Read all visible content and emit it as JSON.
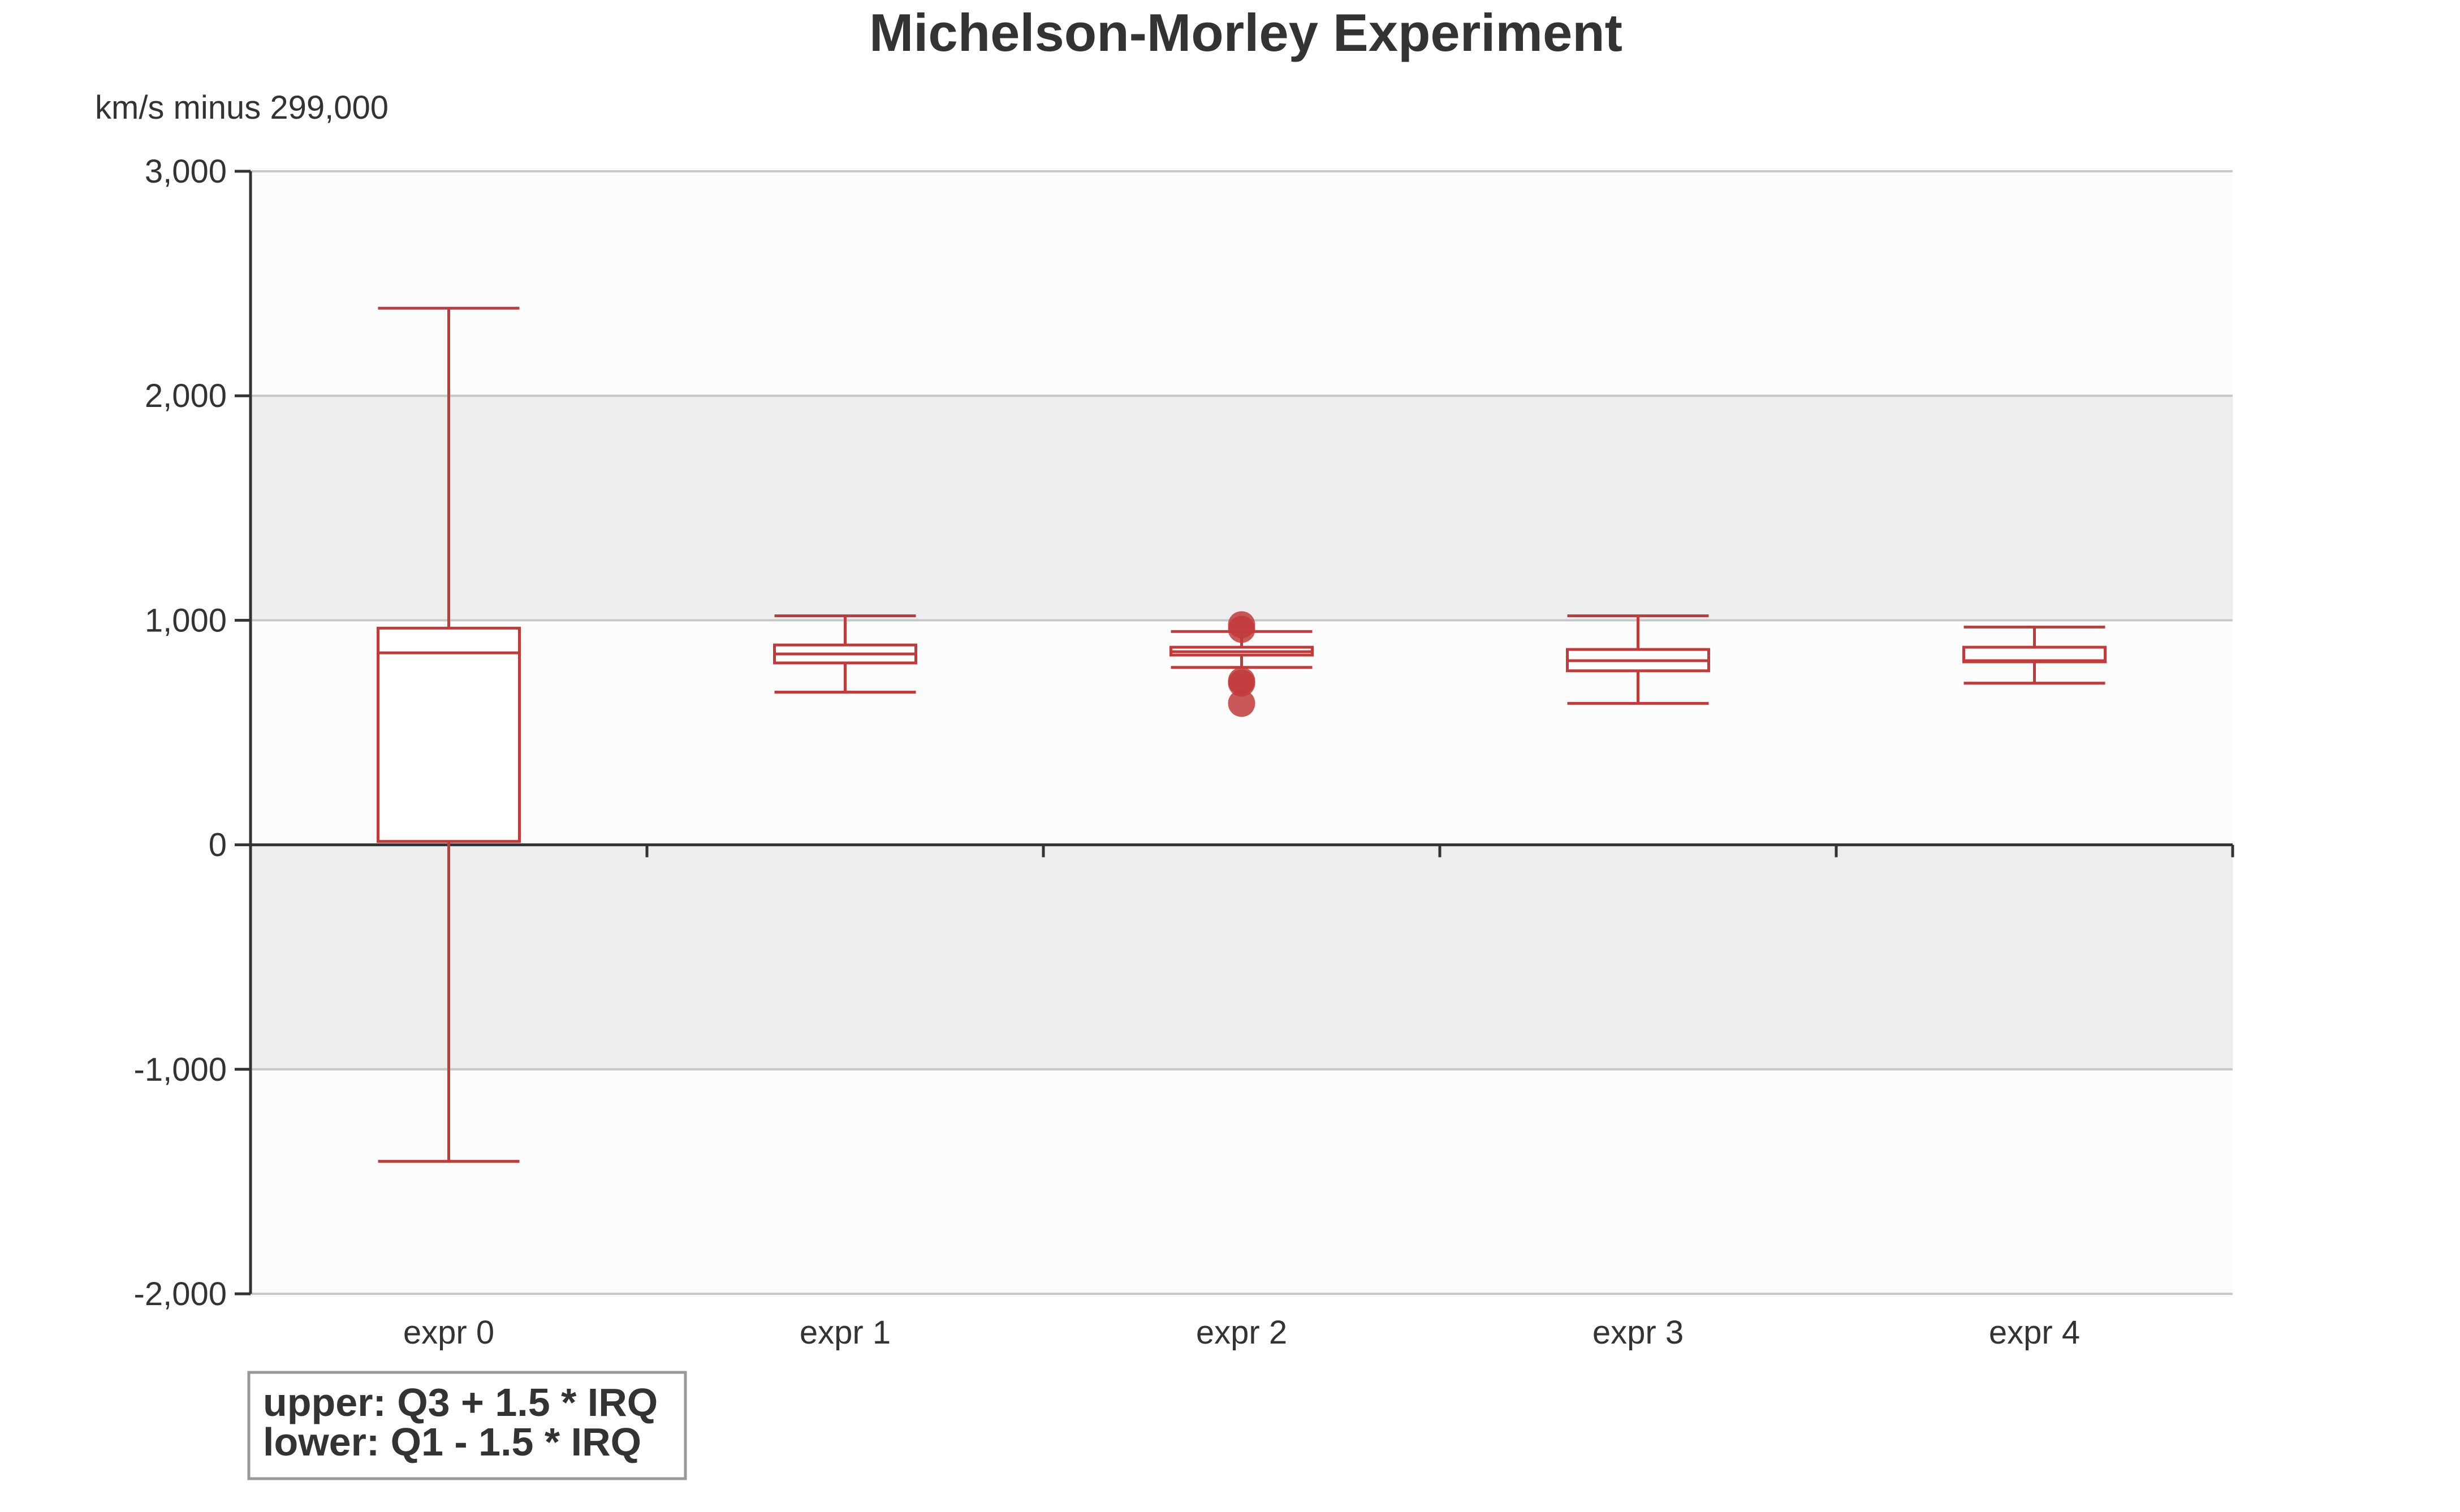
{
  "chart_data": {
    "type": "boxplot",
    "title": "Michelson-Morley Experiment",
    "ylabel": "km/s minus 299,000",
    "ylim": [
      -2000,
      3000
    ],
    "yticks": [
      3000,
      2000,
      1000,
      0,
      -1000,
      -2000
    ],
    "ytick_labels": [
      "3,000",
      "2,000",
      "1,000",
      "0",
      "-1,000",
      "-2,000"
    ],
    "categories": [
      "expr 0",
      "expr 1",
      "expr 2",
      "expr 3",
      "expr 4"
    ],
    "series": [
      {
        "name": "expr 0",
        "whisker_low": -1410,
        "q1": 15,
        "median": 855,
        "q3": 965,
        "whisker_high": 2390,
        "outliers": []
      },
      {
        "name": "expr 1",
        "whisker_low": 680,
        "q1": 810,
        "median": 850,
        "q3": 890,
        "whisker_high": 1020,
        "outliers": []
      },
      {
        "name": "expr 2",
        "whisker_low": 790,
        "q1": 845,
        "median": 860,
        "q3": 880,
        "whisker_high": 950,
        "outliers": [
          980,
          960,
          730,
          720,
          630
        ]
      },
      {
        "name": "expr 3",
        "whisker_low": 630,
        "q1": 775,
        "median": 820,
        "q3": 870,
        "whisker_high": 1020,
        "outliers": []
      },
      {
        "name": "expr 4",
        "whisker_low": 720,
        "q1": 815,
        "median": 820,
        "q3": 880,
        "whisker_high": 970,
        "outliers": []
      }
    ],
    "annotation": {
      "upper": "upper: Q3 + 1.5 * IRQ",
      "lower": "lower: Q1 - 1.5 * IRQ"
    },
    "colors": {
      "box": "#c23b3b",
      "outlier": "#c23b3b",
      "band_light": "#fcfcfc",
      "band_dark": "#ededed",
      "grid": "#c8c8c8",
      "axis": "#333333"
    }
  }
}
